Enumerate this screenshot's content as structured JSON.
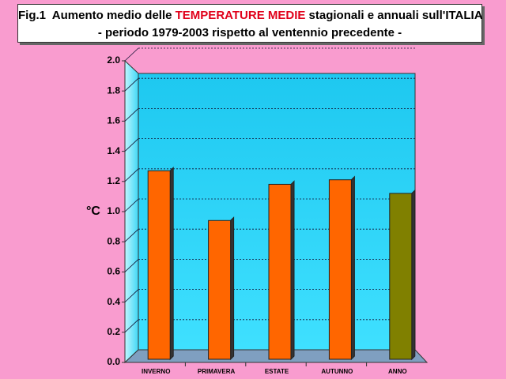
{
  "chart_data": {
    "type": "bar",
    "title": [
      "Fig.1  Aumento medio delle ",
      "TEMPERATURE MEDIE",
      " stagionali e annuali sull'ITALIA"
    ],
    "subtitle": "- periodo 1979-2003 rispetto al ventennio precedente -",
    "y_label": "°C",
    "categories": [
      "INVERNO",
      "PRIMAVERA",
      "ESTATE",
      "AUTUNNO",
      "ANNO"
    ],
    "values": [
      1.25,
      0.92,
      1.16,
      1.19,
      1.1
    ],
    "colors": [
      "#ff6600",
      "#ff6600",
      "#ff6600",
      "#ff6600",
      "#808000"
    ],
    "ylim": [
      0,
      2
    ],
    "yticks": [
      {
        "value": 0,
        "label": "0.0"
      },
      0.2,
      0.4,
      0.6,
      0.8,
      {
        "value": 1,
        "label": "1.0"
      },
      1.2,
      1.4,
      1.6,
      1.8,
      {
        "value": 2,
        "label": "2.0"
      }
    ],
    "grid": true
  }
}
